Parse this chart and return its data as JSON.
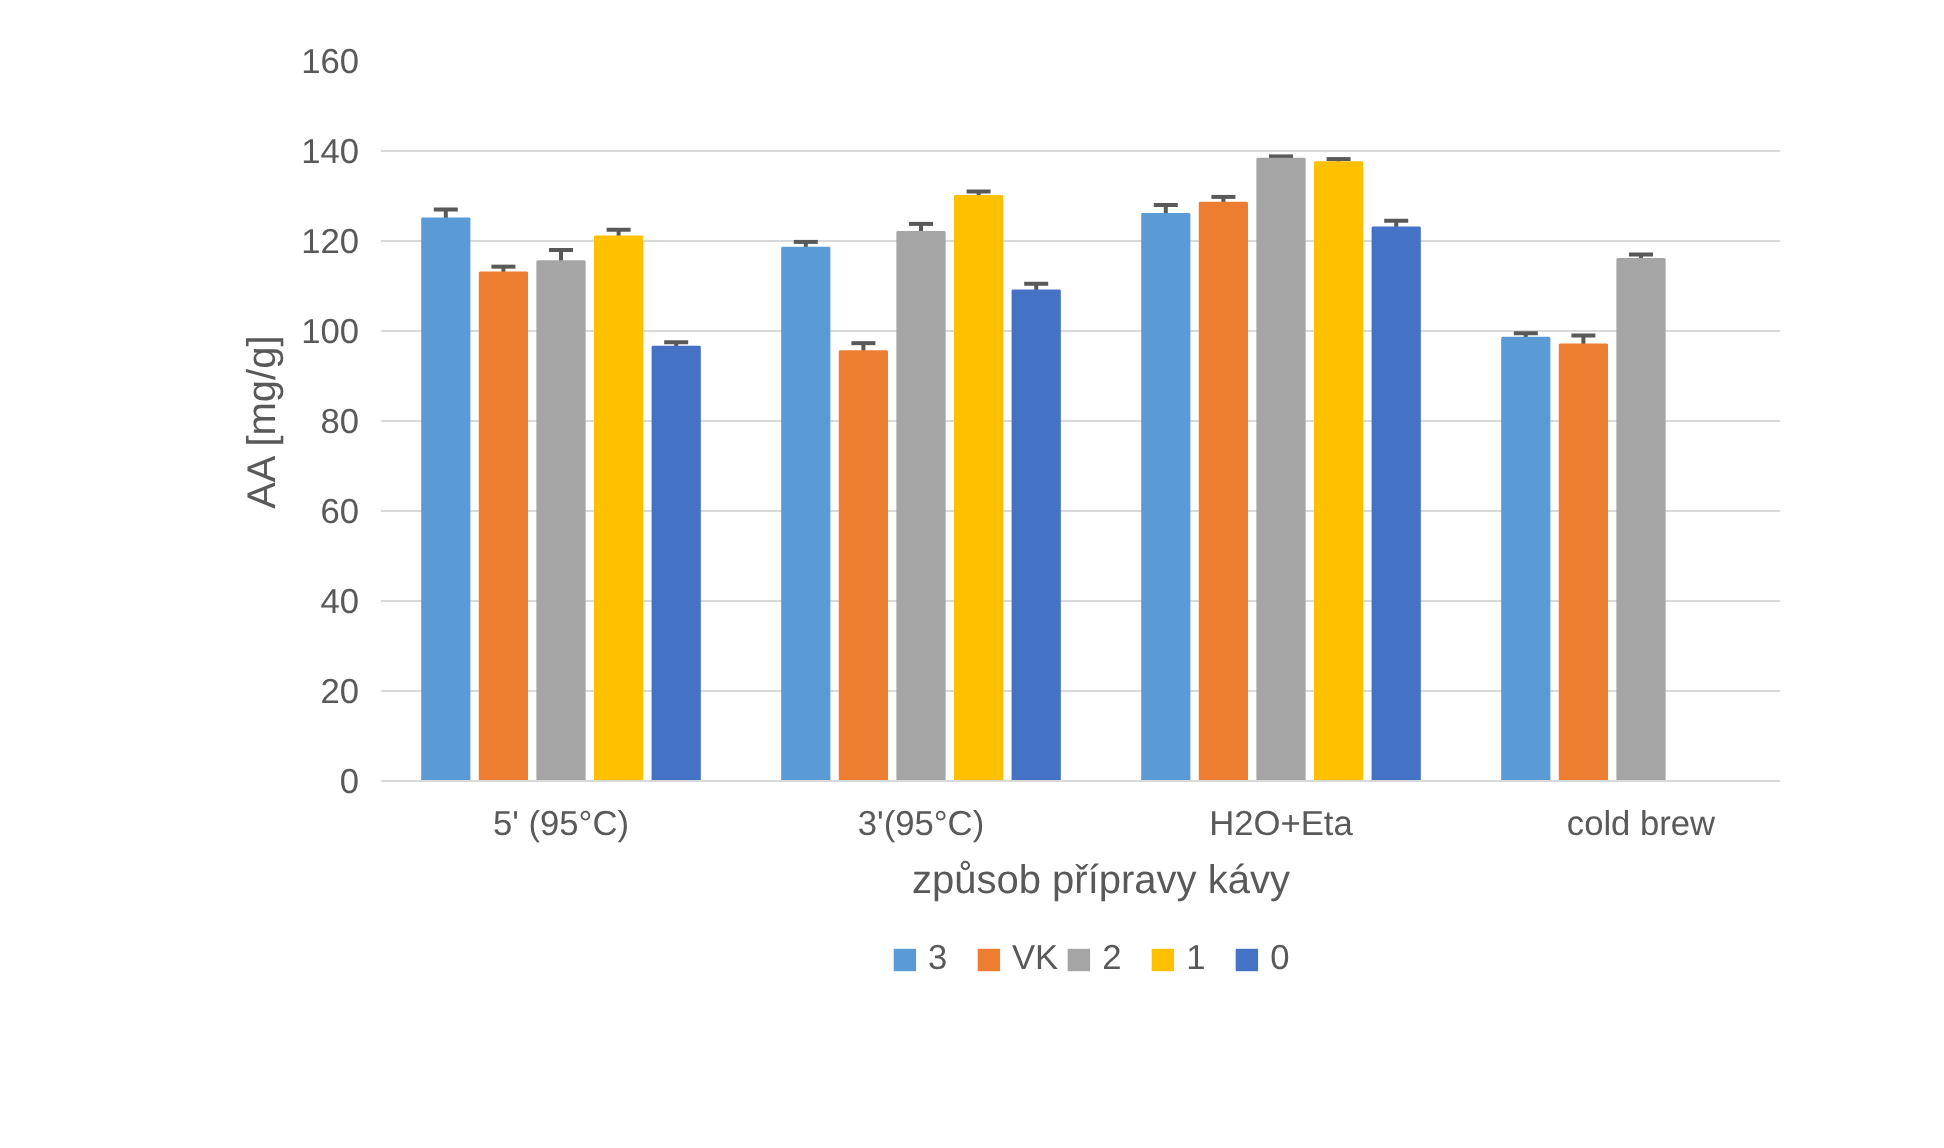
{
  "chart_data": {
    "type": "bar",
    "xlabel": "způsob přípravy kávy",
    "ylabel": "AA [mg/g]",
    "categories": [
      "5' (95°C)",
      "3'(95°C)",
      "H2O+Eta",
      "cold brew"
    ],
    "series": [
      {
        "name": "3",
        "color": "#5b9bd5",
        "values": [
          125,
          118.5,
          126,
          98.5
        ],
        "errors": [
          2,
          1.3,
          2,
          1
        ]
      },
      {
        "name": "VK",
        "color": "#ed7d31",
        "values": [
          113,
          95.5,
          128.5,
          97
        ],
        "errors": [
          1.3,
          1.8,
          1.3,
          2
        ]
      },
      {
        "name": "2",
        "color": "#a5a5a5",
        "values": [
          115.5,
          122,
          138.3,
          116
        ],
        "errors": [
          2.5,
          1.8,
          0.5,
          1
        ]
      },
      {
        "name": "1",
        "color": "#ffc000",
        "values": [
          121,
          130,
          137.5,
          null
        ],
        "errors": [
          1.5,
          1,
          0.7,
          null
        ]
      },
      {
        "name": "0",
        "color": "#4472c4",
        "values": [
          96.5,
          109,
          123,
          null
        ],
        "errors": [
          1,
          1.5,
          1.5,
          null
        ]
      }
    ],
    "ylim": [
      0,
      160
    ],
    "yticks": [
      0,
      20,
      40,
      60,
      80,
      100,
      120,
      140,
      160
    ],
    "grid": "y",
    "legend": "bottom"
  }
}
